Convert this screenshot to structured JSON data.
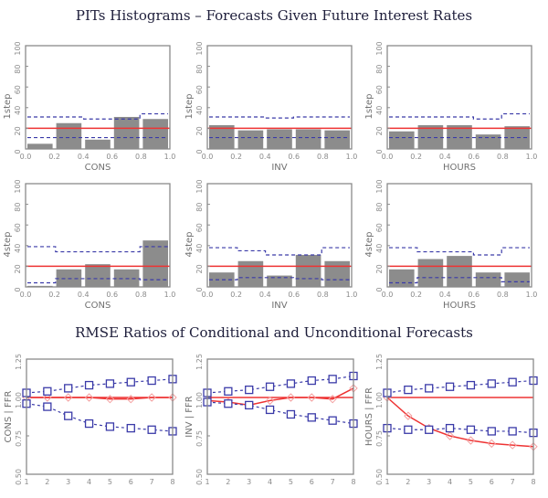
{
  "titles": {
    "histograms": "PITs Histograms – Forecasts Given Future Interest Rates",
    "rmse": "RMSE Ratios of Conditional and Unconditional Forecasts"
  },
  "colors": {
    "bar": "#8c8c8c",
    "reference_line": "#ee3333",
    "band": "#3a3aa8",
    "axis": "#8a8a8a"
  },
  "chart_data": [
    {
      "type": "bar",
      "panel": "hist-1step-cons",
      "xlabel": "CONS",
      "ylabel": "1step",
      "categories": [
        "0.0-0.2",
        "0.2-0.4",
        "0.4-0.6",
        "0.6-0.8",
        "0.8-1.0"
      ],
      "values": [
        5,
        25,
        9,
        31,
        29
      ],
      "reference": 20,
      "upper_band": [
        31,
        31,
        29,
        29,
        34
      ],
      "lower_band": [
        11,
        11,
        11,
        11,
        11
      ],
      "xticks": [
        "0.0",
        "0.2",
        "0.4",
        "0.6",
        "0.8",
        "1.0"
      ],
      "yticks": [
        "0",
        "20",
        "40",
        "60",
        "80",
        "100"
      ],
      "ylim": [
        0,
        100
      ]
    },
    {
      "type": "bar",
      "panel": "hist-1step-inv",
      "xlabel": "INV",
      "ylabel": "1step",
      "categories": [
        "0.0-0.2",
        "0.2-0.4",
        "0.4-0.6",
        "0.6-0.8",
        "0.8-1.0"
      ],
      "values": [
        23,
        18,
        19,
        19,
        18
      ],
      "reference": 20,
      "upper_band": [
        31,
        31,
        30,
        31,
        31
      ],
      "lower_band": [
        11,
        11,
        11,
        11,
        11
      ],
      "xticks": [
        "0.0",
        "0.2",
        "0.4",
        "0.6",
        "0.8",
        "1.0"
      ],
      "yticks": [
        "0",
        "20",
        "40",
        "60",
        "80",
        "100"
      ],
      "ylim": [
        0,
        100
      ]
    },
    {
      "type": "bar",
      "panel": "hist-1step-hours",
      "xlabel": "HOURS",
      "ylabel": "1step",
      "categories": [
        "0.0-0.2",
        "0.2-0.4",
        "0.4-0.6",
        "0.6-0.8",
        "0.8-1.0"
      ],
      "values": [
        17,
        23,
        23,
        14,
        22
      ],
      "reference": 20,
      "upper_band": [
        31,
        31,
        31,
        29,
        34
      ],
      "lower_band": [
        11,
        11,
        11,
        11,
        11
      ],
      "xticks": [
        "0.0",
        "0.2",
        "0.4",
        "0.6",
        "0.8",
        "1.0"
      ],
      "yticks": [
        "0",
        "20",
        "40",
        "60",
        "80",
        "100"
      ],
      "ylim": [
        0,
        100
      ]
    },
    {
      "type": "bar",
      "panel": "hist-4step-cons",
      "xlabel": "CONS",
      "ylabel": "4step",
      "categories": [
        "0.0-0.2",
        "0.2-0.4",
        "0.4-0.6",
        "0.6-0.8",
        "0.8-1.0"
      ],
      "values": [
        1,
        17,
        22,
        17,
        45
      ],
      "reference": 20,
      "upper_band": [
        39,
        34,
        34,
        34,
        39
      ],
      "lower_band": [
        4,
        8,
        8,
        8,
        7
      ],
      "xticks": [
        "0.0",
        "0.2",
        "0.4",
        "0.6",
        "0.8",
        "1.0"
      ],
      "yticks": [
        "0",
        "20",
        "40",
        "60",
        "80",
        "100"
      ],
      "ylim": [
        0,
        100
      ]
    },
    {
      "type": "bar",
      "panel": "hist-4step-inv",
      "xlabel": "INV",
      "ylabel": "4step",
      "categories": [
        "0.0-0.2",
        "0.2-0.4",
        "0.4-0.6",
        "0.6-0.8",
        "0.8-1.0"
      ],
      "values": [
        14,
        25,
        11,
        31,
        25
      ],
      "reference": 20,
      "upper_band": [
        38,
        35,
        31,
        31,
        38
      ],
      "lower_band": [
        7,
        9,
        9,
        8,
        7
      ],
      "xticks": [
        "0.0",
        "0.2",
        "0.4",
        "0.6",
        "0.8",
        "1.0"
      ],
      "yticks": [
        "0",
        "20",
        "40",
        "60",
        "80",
        "100"
      ],
      "ylim": [
        0,
        100
      ]
    },
    {
      "type": "bar",
      "panel": "hist-4step-hours",
      "xlabel": "HOURS",
      "ylabel": "4step",
      "categories": [
        "0.0-0.2",
        "0.2-0.4",
        "0.4-0.6",
        "0.6-0.8",
        "0.8-1.0"
      ],
      "values": [
        17,
        27,
        30,
        14,
        14
      ],
      "reference": 20,
      "upper_band": [
        38,
        34,
        34,
        31,
        38
      ],
      "lower_band": [
        4,
        9,
        9,
        9,
        5
      ],
      "xticks": [
        "0.0",
        "0.2",
        "0.4",
        "0.6",
        "0.8",
        "1.0"
      ],
      "yticks": [
        "0",
        "20",
        "40",
        "60",
        "80",
        "100"
      ],
      "ylim": [
        0,
        100
      ]
    },
    {
      "type": "line",
      "panel": "rmse-cons",
      "ylabel": "CONS | FFR",
      "x": [
        1,
        2,
        3,
        4,
        5,
        6,
        7,
        8
      ],
      "ratio": [
        1.0,
        1.0,
        1.0,
        1.0,
        0.99,
        0.99,
        1.0,
        1.0
      ],
      "upper_band": [
        1.03,
        1.04,
        1.06,
        1.08,
        1.09,
        1.1,
        1.11,
        1.12
      ],
      "lower_band": [
        0.96,
        0.94,
        0.88,
        0.83,
        0.81,
        0.8,
        0.79,
        0.78
      ],
      "reference": 1.0,
      "xticks": [
        "1",
        "2",
        "3",
        "4",
        "5",
        "6",
        "7",
        "8"
      ],
      "yticks": [
        "0.50",
        "0.75",
        "1.00",
        "1.25"
      ],
      "ylim": [
        0.5,
        1.25
      ]
    },
    {
      "type": "line",
      "panel": "rmse-inv",
      "ylabel": "INV | FFR",
      "x": [
        1,
        2,
        3,
        4,
        5,
        6,
        7,
        8
      ],
      "ratio": [
        0.98,
        0.97,
        0.95,
        0.98,
        1.0,
        1.0,
        0.99,
        1.06
      ],
      "upper_band": [
        1.03,
        1.04,
        1.05,
        1.07,
        1.09,
        1.11,
        1.12,
        1.14
      ],
      "lower_band": [
        0.97,
        0.96,
        0.95,
        0.92,
        0.89,
        0.87,
        0.85,
        0.83
      ],
      "reference": 1.0,
      "xticks": [
        "1",
        "2",
        "3",
        "4",
        "5",
        "6",
        "7",
        "8"
      ],
      "yticks": [
        "0.50",
        "0.75",
        "1.00",
        "1.25"
      ],
      "ylim": [
        0.5,
        1.25
      ]
    },
    {
      "type": "line",
      "panel": "rmse-hours",
      "ylabel": "HOURS | FFR",
      "x": [
        1,
        2,
        3,
        4,
        5,
        6,
        7,
        8
      ],
      "ratio": [
        1.0,
        0.88,
        0.8,
        0.75,
        0.72,
        0.7,
        0.69,
        0.68
      ],
      "upper_band": [
        1.03,
        1.05,
        1.06,
        1.07,
        1.08,
        1.09,
        1.1,
        1.11
      ],
      "lower_band": [
        0.8,
        0.79,
        0.79,
        0.8,
        0.79,
        0.78,
        0.78,
        0.77
      ],
      "reference": 1.0,
      "xticks": [
        "1",
        "2",
        "3",
        "4",
        "5",
        "6",
        "7",
        "8"
      ],
      "yticks": [
        "0.50",
        "0.75",
        "1.00",
        "1.25"
      ],
      "ylim": [
        0.5,
        1.25
      ]
    }
  ]
}
